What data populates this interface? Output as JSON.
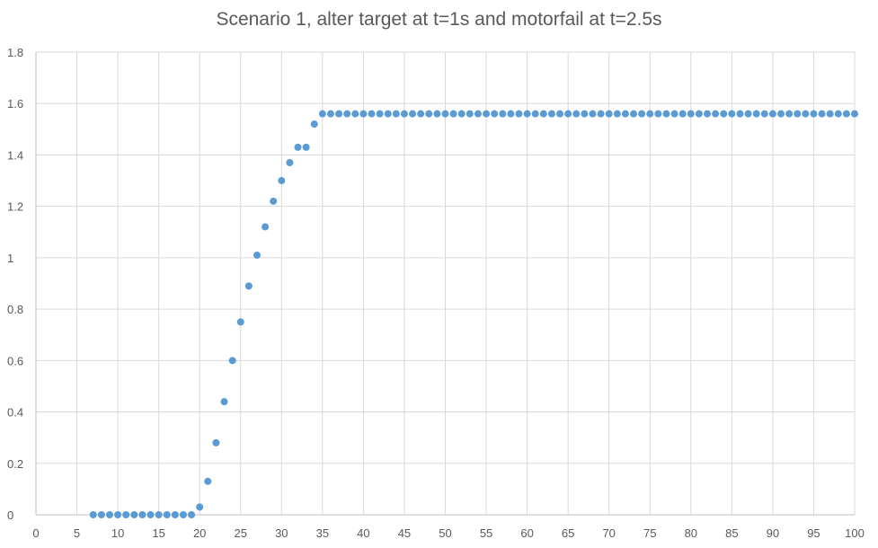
{
  "chart_data": {
    "type": "scatter",
    "title": "Scenario 1, alter target at t=1s and motorfail at t=2.5s",
    "xlabel": "",
    "ylabel": "",
    "xlim": [
      0,
      100
    ],
    "ylim": [
      0,
      1.8
    ],
    "x_ticks": [
      0,
      5,
      10,
      15,
      20,
      25,
      30,
      35,
      40,
      45,
      50,
      55,
      60,
      65,
      70,
      75,
      80,
      85,
      90,
      95,
      100
    ],
    "y_ticks": [
      0,
      0.2,
      0.4,
      0.6,
      0.8,
      1,
      1.2,
      1.4,
      1.6,
      1.8
    ],
    "grid": true,
    "legend": "none",
    "series": [
      {
        "color": "#5b9bd5",
        "x": [
          7,
          8,
          9,
          10,
          11,
          12,
          13,
          14,
          15,
          16,
          17,
          18,
          19,
          20,
          21,
          22,
          23,
          24,
          25,
          26,
          27,
          28,
          29,
          30,
          31,
          32,
          33,
          34,
          35,
          36,
          37,
          38,
          39,
          40,
          41,
          42,
          43,
          44,
          45,
          46,
          47,
          48,
          49,
          50,
          51,
          52,
          53,
          54,
          55,
          56,
          57,
          58,
          59,
          60,
          61,
          62,
          63,
          64,
          65,
          66,
          67,
          68,
          69,
          70,
          71,
          72,
          73,
          74,
          75,
          76,
          77,
          78,
          79,
          80,
          81,
          82,
          83,
          84,
          85,
          86,
          87,
          88,
          89,
          90,
          91,
          92,
          93,
          94,
          95,
          96,
          97,
          98,
          99,
          100
        ],
        "y": [
          0,
          0,
          0,
          0,
          0,
          0,
          0,
          0,
          0,
          0,
          0,
          0,
          0,
          0.03,
          0.13,
          0.28,
          0.44,
          0.6,
          0.75,
          0.89,
          1.01,
          1.12,
          1.22,
          1.3,
          1.37,
          1.43,
          1.43,
          1.52,
          1.56,
          1.56,
          1.56,
          1.56,
          1.56,
          1.56,
          1.56,
          1.56,
          1.56,
          1.56,
          1.56,
          1.56,
          1.56,
          1.56,
          1.56,
          1.56,
          1.56,
          1.56,
          1.56,
          1.56,
          1.56,
          1.56,
          1.56,
          1.56,
          1.56,
          1.56,
          1.56,
          1.56,
          1.56,
          1.56,
          1.56,
          1.56,
          1.56,
          1.56,
          1.56,
          1.56,
          1.56,
          1.56,
          1.56,
          1.56,
          1.56,
          1.56,
          1.56,
          1.56,
          1.56,
          1.56,
          1.56,
          1.56,
          1.56,
          1.56,
          1.56,
          1.56,
          1.56,
          1.56,
          1.56,
          1.56,
          1.56,
          1.56,
          1.56,
          1.56,
          1.56,
          1.56,
          1.56,
          1.56,
          1.56,
          1.56
        ]
      }
    ],
    "colors": {
      "grid": "#d9d9d9",
      "axis": "#bfbfbf",
      "text": "#595959",
      "background": "#ffffff"
    }
  }
}
